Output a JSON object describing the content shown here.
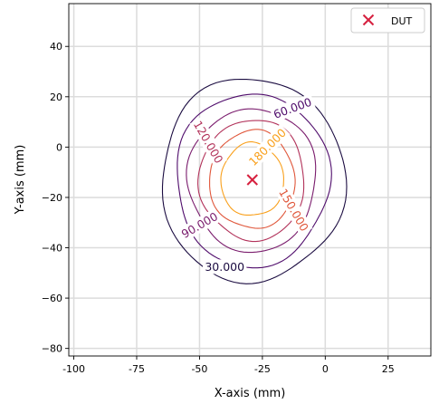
{
  "chart_data": {
    "type": "contour",
    "title": "",
    "xlabel": "X-axis (mm)",
    "ylabel": "Y-axis (mm)",
    "xlim": [
      -102,
      42
    ],
    "ylim": [
      -83,
      57
    ],
    "xticks": [
      -100,
      -75,
      -50,
      -25,
      0,
      25
    ],
    "yticks": [
      -80,
      -60,
      -40,
      -20,
      0,
      20,
      40
    ],
    "xtick_labels": [
      "-100",
      "-75",
      "-50",
      "-25",
      "0",
      "25"
    ],
    "ytick_labels": [
      "−80",
      "−60",
      "−40",
      "−20",
      "0",
      "20",
      "40"
    ],
    "grid": true,
    "legend_position": "top-right",
    "center": {
      "x": -29,
      "y": -13
    },
    "marker": {
      "name": "DUT",
      "x": -29,
      "y": -13,
      "symbol": "x",
      "color": "#d6213f"
    },
    "contours": [
      {
        "level": 30,
        "label": "30.000",
        "color": "#1b0c41",
        "rx": 36.5,
        "ry": 40.5
      },
      {
        "level": 60,
        "label": "60.000",
        "color": "#4f0c6b",
        "rx": 30.5,
        "ry": 34.5
      },
      {
        "level": 90,
        "label": "90.000",
        "color": "#7a1c6d",
        "rx": 25.5,
        "ry": 28.5
      },
      {
        "level": 120,
        "label": "120.000",
        "color": "#b2325a",
        "rx": 21,
        "ry": 24
      },
      {
        "level": 150,
        "label": "150.000",
        "color": "#e0573b",
        "rx": 17,
        "ry": 19.5
      },
      {
        "level": 180,
        "label": "180.000",
        "color": "#f9a01c",
        "rx": 12.5,
        "ry": 14.5
      }
    ],
    "contour_labels": [
      {
        "text": "30.000",
        "x": -40,
        "y": -47.5,
        "angle": 0,
        "color": "#1b0c41"
      },
      {
        "text": "60.000",
        "x": -13,
        "y": 15.5,
        "angle": 20,
        "color": "#4f0c6b"
      },
      {
        "text": "90.000",
        "x": -50,
        "y": -31,
        "angle": 30,
        "color": "#7a1c6d"
      },
      {
        "text": "120.000",
        "x": -46.5,
        "y": 2,
        "angle": -60,
        "color": "#b2325a"
      },
      {
        "text": "150.000",
        "x": -12.5,
        "y": -25,
        "angle": -60,
        "color": "#e0573b"
      },
      {
        "text": "180.000",
        "x": -23,
        "y": 0,
        "angle": 45,
        "color": "#f9a01c"
      }
    ]
  }
}
